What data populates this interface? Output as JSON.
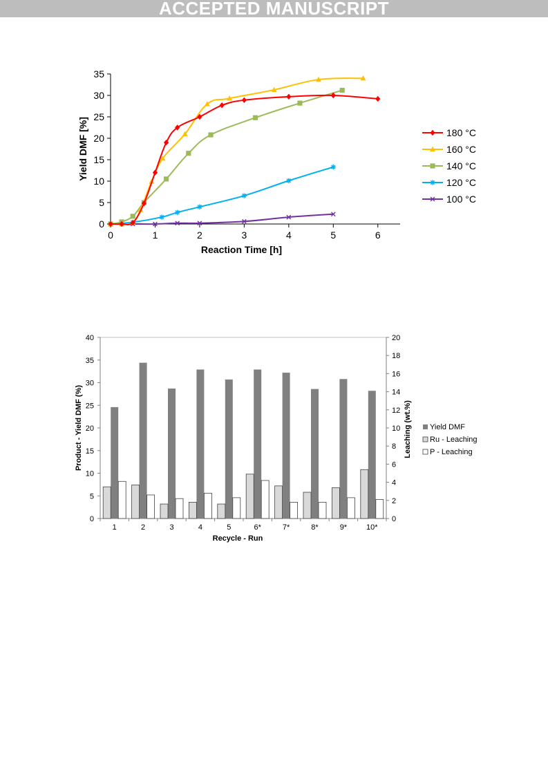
{
  "banner": {
    "text": "ACCEPTED MANUSCRIPT"
  },
  "chart_data": [
    {
      "type": "line",
      "title": "",
      "xlabel": "Reaction Time [h]",
      "ylabel": "Yield DMF [%]",
      "xlim": [
        0,
        6.5
      ],
      "ylim": [
        0,
        35
      ],
      "xticks": [
        "0",
        "1",
        "2",
        "3",
        "4",
        "5",
        "6"
      ],
      "yticks": [
        "0",
        "5",
        "10",
        "15",
        "20",
        "25",
        "30",
        "35"
      ],
      "grid": false,
      "legend_position": "right",
      "series": [
        {
          "name": "180 °C",
          "color": "#ff0000",
          "marker": "diamond",
          "points": [
            [
              0,
              0
            ],
            [
              0.25,
              0
            ],
            [
              0.5,
              0.3
            ],
            [
              0.75,
              4.8
            ],
            [
              1,
              12
            ],
            [
              1.25,
              19
            ],
            [
              1.5,
              22.5
            ],
            [
              2,
              25
            ],
            [
              2.5,
              27.7
            ],
            [
              3,
              28.9
            ],
            [
              4,
              29.7
            ],
            [
              5,
              30
            ],
            [
              6,
              29.2
            ]
          ]
        },
        {
          "name": "160 °C",
          "color": "#ffc000",
          "marker": "triangle",
          "points": [
            [
              0,
              0
            ],
            [
              0.25,
              0
            ],
            [
              0.5,
              0.3
            ],
            [
              0.67,
              3.3
            ],
            [
              0.92,
              9.9
            ],
            [
              1.17,
              15.3
            ],
            [
              1.67,
              21
            ],
            [
              2.17,
              28
            ],
            [
              2.67,
              29.3
            ],
            [
              3.67,
              31.3
            ],
            [
              4.67,
              33.7
            ],
            [
              5.67,
              34
            ]
          ]
        },
        {
          "name": "140 °C",
          "color": "#9bbb59",
          "marker": "square",
          "points": [
            [
              0,
              0
            ],
            [
              0.25,
              0.5
            ],
            [
              0.5,
              1.8
            ],
            [
              0.75,
              5
            ],
            [
              1.25,
              10.5
            ],
            [
              1.75,
              16.5
            ],
            [
              2.25,
              20.8
            ],
            [
              3.25,
              24.8
            ],
            [
              4.25,
              28.2
            ],
            [
              5.2,
              31.2
            ]
          ]
        },
        {
          "name": "120 °C",
          "color": "#00b0f0",
          "marker": "star",
          "points": [
            [
              0,
              0
            ],
            [
              0.5,
              0.4
            ],
            [
              1.15,
              1.6
            ],
            [
              1.5,
              2.7
            ],
            [
              2,
              4
            ],
            [
              3,
              6.6
            ],
            [
              4,
              10.1
            ],
            [
              5,
              13.3
            ]
          ]
        },
        {
          "name": "100 °C",
          "color": "#7030a0",
          "marker": "x",
          "points": [
            [
              0,
              0
            ],
            [
              0.5,
              0
            ],
            [
              1,
              0
            ],
            [
              1.5,
              0.2
            ],
            [
              2,
              0.2
            ],
            [
              3,
              0.6
            ],
            [
              4,
              1.6
            ],
            [
              5,
              2.3
            ]
          ]
        }
      ]
    },
    {
      "type": "bar",
      "title": "",
      "xlabel": "Recycle - Run",
      "ylabel": "Product - Yield DMF (%)",
      "y2label": "Leaching (wt.%)",
      "categories": [
        "1",
        "2",
        "3",
        "4",
        "5",
        "6*",
        "7*",
        "8*",
        "9*",
        "10*"
      ],
      "ylim": [
        0,
        40
      ],
      "y2lim": [
        0,
        20
      ],
      "yticks": [
        "0",
        "5",
        "10",
        "15",
        "20",
        "25",
        "30",
        "35",
        "40"
      ],
      "y2ticks": [
        "0",
        "2",
        "4",
        "6",
        "8",
        "10",
        "12",
        "14",
        "16",
        "18",
        "20"
      ],
      "grid": false,
      "legend_position": "right",
      "series": [
        {
          "name": "Yield DMF",
          "axis": "left",
          "color": "#808080",
          "values": [
            24.6,
            34.4,
            28.7,
            32.9,
            30.7,
            32.9,
            32.2,
            28.6,
            30.8,
            28.2
          ]
        },
        {
          "name": "Ru - Leaching",
          "axis": "right",
          "color": "#d9d9d9",
          "values": [
            3.5,
            3.7,
            1.6,
            1.8,
            1.6,
            4.9,
            3.6,
            2.9,
            3.4,
            5.4
          ]
        },
        {
          "name": "P - Leaching",
          "axis": "right",
          "color": "#ffffff",
          "values": [
            4.1,
            2.6,
            2.2,
            2.8,
            2.3,
            4.2,
            1.8,
            1.8,
            2.3,
            2.1
          ]
        }
      ]
    }
  ]
}
